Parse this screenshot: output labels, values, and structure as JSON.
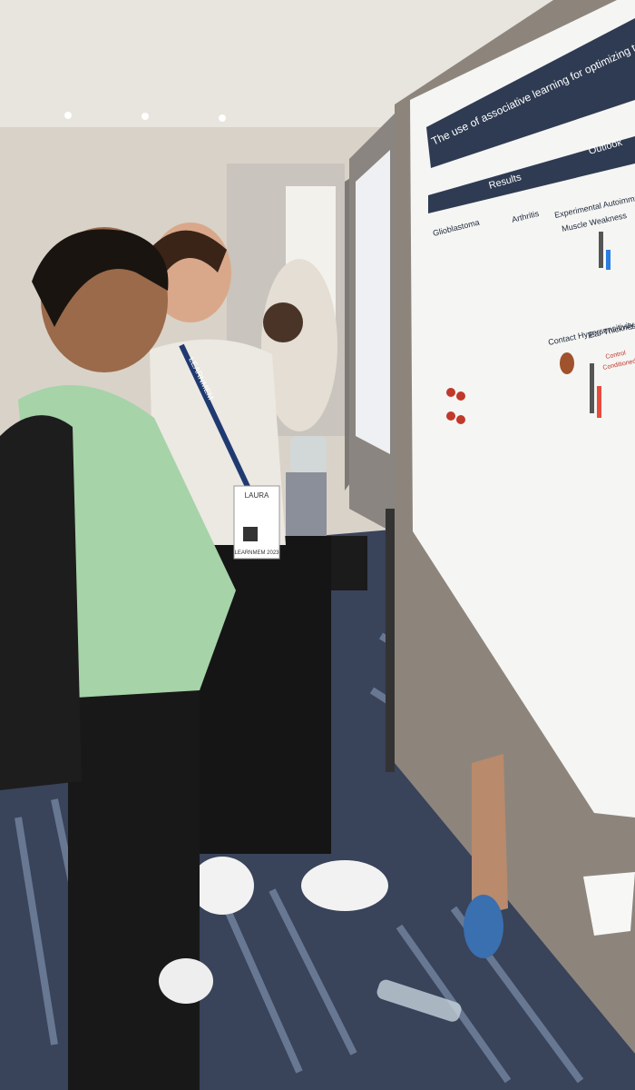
{
  "poster": {
    "title": "The use of associative learning for optimizing treatment of immune related diseases",
    "sections": [
      "Results",
      "Outlook"
    ],
    "labels": [
      "Glioblastoma",
      "Arthritis",
      "Experimental Autoimmune Myasthenia Gravis",
      "Muscle Weakness",
      "Contact Hypersensitivity",
      "Ear Thickness",
      "Control",
      "Conditioned"
    ]
  },
  "badge": {
    "name": "LAURA",
    "event": "LEARNMEM 2023"
  },
  "lanyard": "LEARNMEM"
}
